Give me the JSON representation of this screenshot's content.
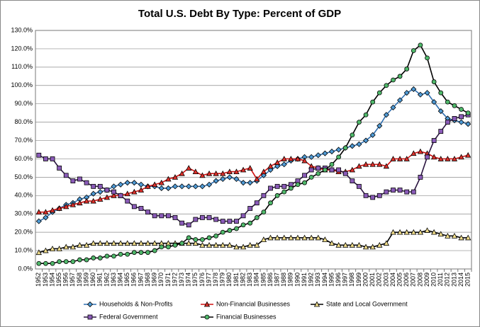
{
  "chart_data": {
    "type": "line",
    "title": "Total U.S. Debt By Type:  Percent of GDP",
    "categories": [
      "1952",
      "1953",
      "1954",
      "1955",
      "1956",
      "1957",
      "1958",
      "1959",
      "1960",
      "1961",
      "1962",
      "1963",
      "1964",
      "1965",
      "1966",
      "1967",
      "1968",
      "1969",
      "1970",
      "1971",
      "1972",
      "1973",
      "1974",
      "1975",
      "1976",
      "1977",
      "1978",
      "1979",
      "1980",
      "1981",
      "1982",
      "1983",
      "1984",
      "1985",
      "1986",
      "1987",
      "1988",
      "1989",
      "1990",
      "1991",
      "1992",
      "1993",
      "1994",
      "1995",
      "1996",
      "1997",
      "1998",
      "1999",
      "2000",
      "2001",
      "2002",
      "2003",
      "2004",
      "2005",
      "2006",
      "2007",
      "2008",
      "2009",
      "2010",
      "2011",
      "2012",
      "2013",
      "2014",
      "2015"
    ],
    "series": [
      {
        "name": "Households & Non-Profits",
        "color": "#4f9bd6",
        "line_color": "#2f6fb0",
        "marker": "diamond",
        "values": [
          26,
          28,
          31,
          33,
          35,
          36,
          38,
          39,
          41,
          42,
          43,
          45,
          46,
          47,
          47,
          46,
          45,
          45,
          44,
          44,
          45,
          45,
          45,
          45,
          45,
          46,
          48,
          49,
          50,
          49,
          47,
          47,
          48,
          51,
          54,
          56,
          57,
          59,
          60,
          61,
          61,
          62,
          63,
          64,
          65,
          66,
          67,
          68,
          70,
          73,
          78,
          84,
          88,
          92,
          96,
          98,
          95,
          96,
          91,
          86,
          82,
          81,
          80,
          79
        ]
      },
      {
        "name": "Non-Financial Businesses",
        "color": "#e0302a",
        "line_color": "#d01010",
        "marker": "triangle",
        "values": [
          31,
          31,
          32,
          33,
          34,
          35,
          36,
          37,
          37,
          38,
          39,
          40,
          40,
          41,
          42,
          43,
          45,
          46,
          47,
          49,
          50,
          52,
          55,
          53,
          51,
          52,
          52,
          52,
          53,
          53,
          54,
          55,
          49,
          53,
          56,
          58,
          60,
          60,
          60,
          59,
          56,
          55,
          54,
          54,
          53,
          53,
          54,
          56,
          57,
          57,
          57,
          56,
          60,
          60,
          60,
          63,
          64,
          63,
          61,
          60,
          60,
          60,
          61,
          62
        ]
      },
      {
        "name": "State and Local Government",
        "color": "#f2de8a",
        "line_color": "#000000",
        "marker": "triangle",
        "values": [
          9,
          10,
          11,
          11,
          12,
          12,
          13,
          13,
          14,
          14,
          14,
          14,
          14,
          14,
          14,
          14,
          14,
          14,
          14,
          14,
          14,
          14,
          14,
          14,
          13,
          13,
          13,
          13,
          13,
          12,
          12,
          13,
          13,
          16,
          17,
          17,
          17,
          17,
          17,
          17,
          17,
          17,
          16,
          14,
          13,
          13,
          13,
          13,
          12,
          12,
          13,
          14,
          20,
          20,
          20,
          20,
          20,
          21,
          20,
          19,
          18,
          18,
          17,
          17
        ]
      },
      {
        "name": "Federal Government",
        "color": "#8a5bb8",
        "line_color": "#2a1440",
        "marker": "square",
        "values": [
          62,
          60,
          60,
          55,
          51,
          48,
          49,
          47,
          45,
          45,
          43,
          42,
          40,
          37,
          34,
          33,
          31,
          29,
          29,
          29,
          28,
          25,
          24,
          27,
          28,
          28,
          27,
          26,
          26,
          26,
          29,
          33,
          36,
          40,
          44,
          45,
          45,
          46,
          48,
          51,
          54,
          55,
          55,
          54,
          54,
          52,
          48,
          45,
          40,
          39,
          40,
          42,
          43,
          43,
          42,
          42,
          50,
          61,
          70,
          75,
          80,
          82,
          83,
          84
        ]
      },
      {
        "name": "Financial Businesses",
        "color": "#4fb86a",
        "line_color": "#000000",
        "marker": "circle",
        "values": [
          3,
          3,
          3,
          4,
          4,
          4,
          5,
          5,
          6,
          6,
          7,
          7,
          8,
          8,
          9,
          9,
          9,
          10,
          12,
          12,
          13,
          14,
          17,
          16,
          16,
          17,
          18,
          20,
          21,
          22,
          24,
          25,
          28,
          31,
          36,
          40,
          42,
          44,
          46,
          47,
          50,
          52,
          54,
          57,
          61,
          66,
          73,
          80,
          84,
          91,
          96,
          100,
          103,
          105,
          109,
          119,
          122,
          115,
          102,
          96,
          91,
          89,
          87,
          85
        ]
      }
    ],
    "ylim": [
      0,
      130
    ],
    "yticks": [
      {
        "value": 0,
        "label": "0.0%"
      },
      {
        "value": 10,
        "label": "10.0%"
      },
      {
        "value": 20,
        "label": "20.0%"
      },
      {
        "value": 30,
        "label": "30.0%"
      },
      {
        "value": 40,
        "label": "40.0%"
      },
      {
        "value": 50,
        "label": "50.0%"
      },
      {
        "value": 60,
        "label": "60.0%"
      },
      {
        "value": 70,
        "label": "70.0%"
      },
      {
        "value": 80,
        "label": "80.0%"
      },
      {
        "value": 90,
        "label": "90.0%"
      },
      {
        "value": 100,
        "label": "100.0%"
      },
      {
        "value": 110,
        "label": "110.0%"
      },
      {
        "value": 120,
        "label": "120.0%"
      },
      {
        "value": 130,
        "label": "130.0%"
      }
    ],
    "grid": true,
    "legend": "bottom"
  }
}
